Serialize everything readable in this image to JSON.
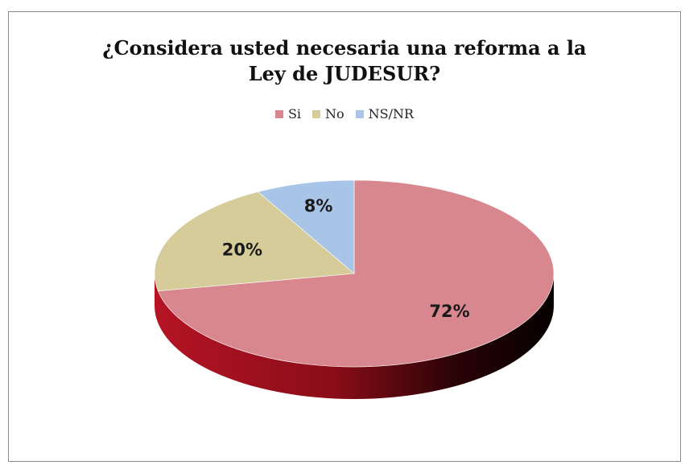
{
  "chart_data": {
    "type": "pie",
    "title_lines": [
      "¿Considera usted necesaria una reforma a la",
      "Ley de JUDESUR?"
    ],
    "slices": [
      {
        "label": "Si",
        "value": 72,
        "display": "72%",
        "color": "#d9878e",
        "dark": "#a8101c"
      },
      {
        "label": "No",
        "value": 20,
        "display": "20%",
        "color": "#d6cc9a",
        "dark": "#9a8e54"
      },
      {
        "label": "NS/NR",
        "value": 8,
        "display": "8%",
        "color": "#a8c4e6",
        "dark": "#6f8fb8"
      }
    ],
    "legend_position": "top"
  }
}
